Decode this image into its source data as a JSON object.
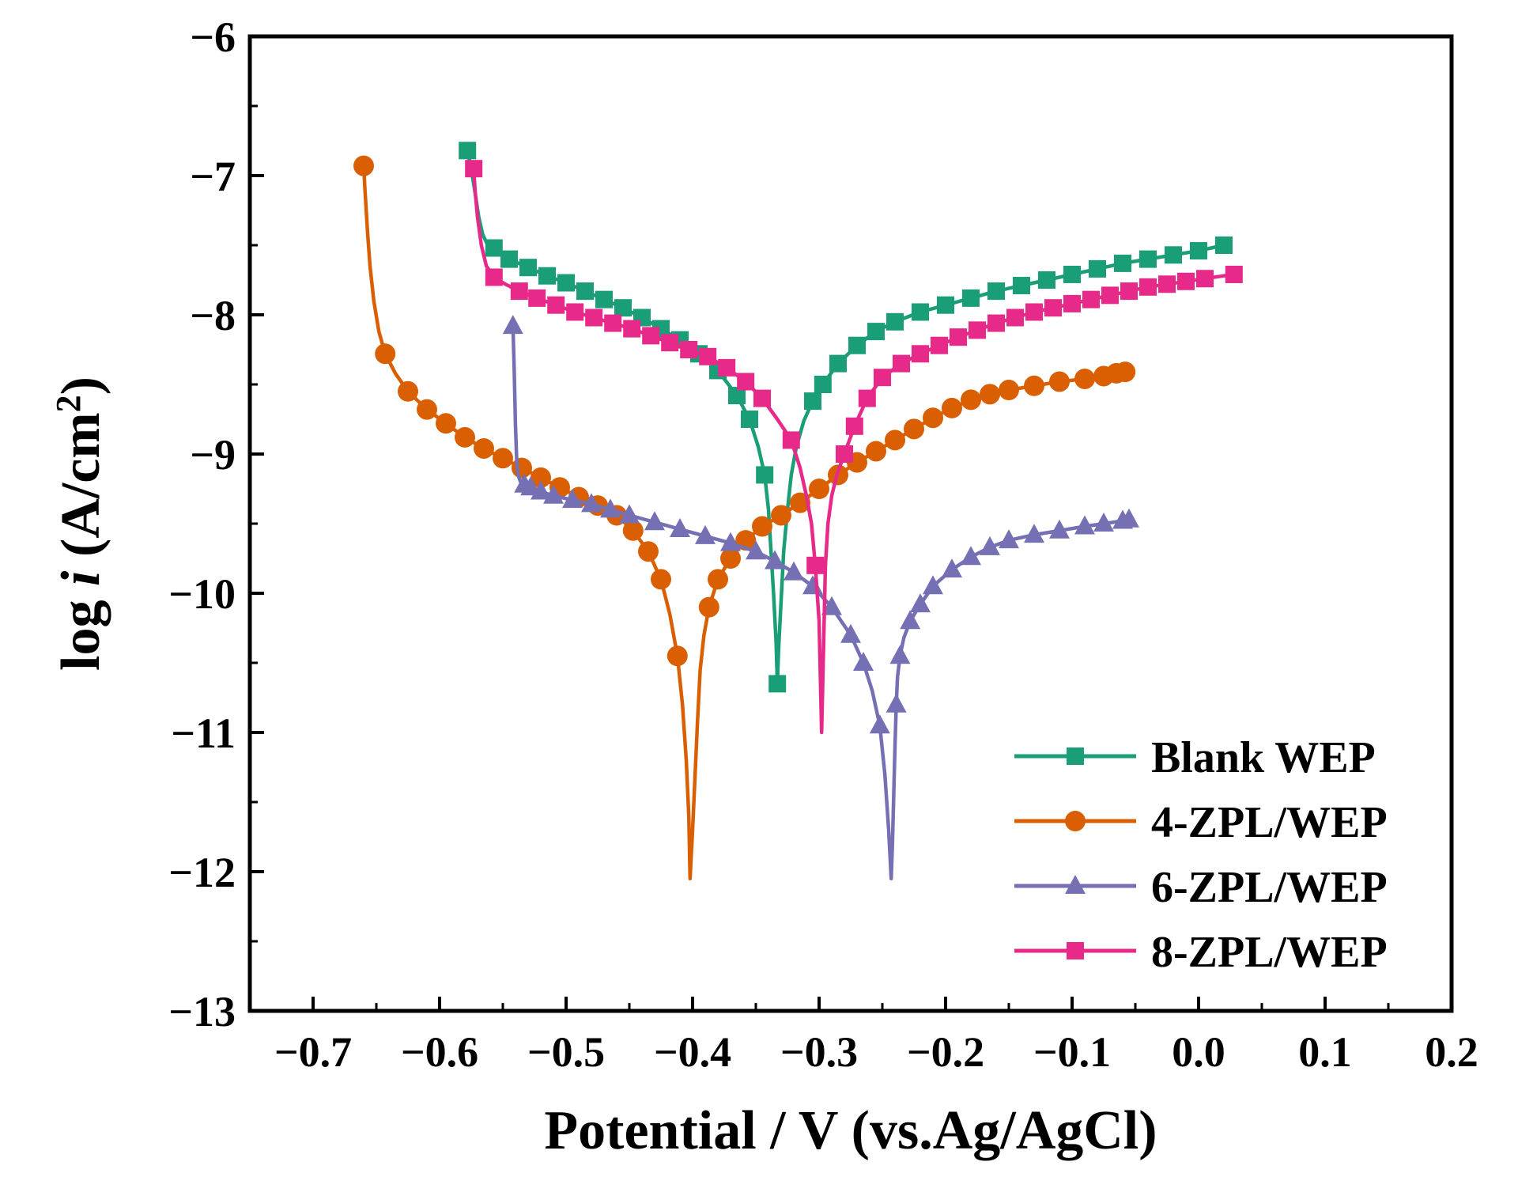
{
  "chart_data": {
    "type": "line",
    "title": "",
    "xlabel": "Potential / V (vs.Ag/AgCl)",
    "ylabel_prefix": "log ",
    "ylabel_var": "i",
    "ylabel_unit": " (A/cm",
    "ylabel_sup": "2",
    "ylabel_close": ")",
    "xlim": [
      -0.75,
      0.2
    ],
    "ylim": [
      -13,
      -6
    ],
    "xticks": [
      -0.7,
      -0.6,
      -0.5,
      -0.4,
      -0.3,
      -0.2,
      -0.1,
      0.0,
      0.1,
      0.2
    ],
    "xtick_labels": [
      "−0.7",
      "−0.6",
      "−0.5",
      "−0.4",
      "−0.3",
      "−0.2",
      "−0.1",
      "0.0",
      "0.1",
      "0.2"
    ],
    "yticks": [
      -6,
      -7,
      -8,
      -9,
      -10,
      -11,
      -12,
      -13
    ],
    "ytick_labels": [
      "−6",
      "−7",
      "−8",
      "−9",
      "−10",
      "−11",
      "−12",
      "−13"
    ],
    "grid": false,
    "legend_position": "bottom-right",
    "series": [
      {
        "name": "Blank WEP",
        "color": "#1a9e77",
        "marker": "square",
        "x": [
          -0.578,
          -0.575,
          -0.572,
          -0.569,
          -0.566,
          -0.563,
          -0.557,
          -0.545,
          -0.53,
          -0.515,
          -0.5,
          -0.485,
          -0.47,
          -0.455,
          -0.44,
          -0.425,
          -0.41,
          -0.395,
          -0.38,
          -0.365,
          -0.355,
          -0.348,
          -0.343,
          -0.34,
          -0.338,
          -0.336,
          -0.334,
          -0.333,
          -0.332,
          -0.33,
          -0.328,
          -0.325,
          -0.322,
          -0.318,
          -0.312,
          -0.305,
          -0.297,
          -0.285,
          -0.27,
          -0.255,
          -0.24,
          -0.22,
          -0.2,
          -0.18,
          -0.16,
          -0.14,
          -0.12,
          -0.1,
          -0.08,
          -0.06,
          -0.04,
          -0.02,
          0.0,
          0.01,
          0.02
        ],
        "y": [
          -6.82,
          -6.95,
          -7.12,
          -7.3,
          -7.42,
          -7.48,
          -7.52,
          -7.6,
          -7.66,
          -7.72,
          -7.77,
          -7.83,
          -7.89,
          -7.95,
          -8.02,
          -8.1,
          -8.18,
          -8.28,
          -8.4,
          -8.58,
          -8.75,
          -8.95,
          -9.15,
          -9.4,
          -9.7,
          -10.0,
          -10.35,
          -10.65,
          -10.4,
          -10.05,
          -9.7,
          -9.4,
          -9.15,
          -8.95,
          -8.76,
          -8.62,
          -8.5,
          -8.35,
          -8.22,
          -8.12,
          -8.05,
          -7.98,
          -7.93,
          -7.88,
          -7.83,
          -7.79,
          -7.75,
          -7.71,
          -7.67,
          -7.63,
          -7.6,
          -7.57,
          -7.54,
          -7.52,
          -7.5
        ],
        "marker_idx": [
          0,
          6,
          7,
          8,
          9,
          10,
          11,
          12,
          13,
          14,
          15,
          16,
          17,
          18,
          19,
          20,
          22,
          27,
          35,
          36,
          37,
          38,
          39,
          40,
          41,
          42,
          43,
          44,
          45,
          46,
          47,
          48,
          49,
          50,
          51,
          52,
          54
        ]
      },
      {
        "name": "4-ZPL/WEP",
        "color": "#d95f02",
        "marker": "circle",
        "x": [
          -0.66,
          -0.659,
          -0.657,
          -0.655,
          -0.652,
          -0.648,
          -0.643,
          -0.635,
          -0.625,
          -0.61,
          -0.595,
          -0.58,
          -0.565,
          -0.55,
          -0.535,
          -0.52,
          -0.505,
          -0.49,
          -0.475,
          -0.46,
          -0.447,
          -0.435,
          -0.425,
          -0.418,
          -0.412,
          -0.408,
          -0.405,
          -0.403,
          -0.402,
          -0.4,
          -0.398,
          -0.396,
          -0.394,
          -0.391,
          -0.387,
          -0.38,
          -0.37,
          -0.358,
          -0.345,
          -0.33,
          -0.315,
          -0.3,
          -0.285,
          -0.27,
          -0.255,
          -0.24,
          -0.225,
          -0.21,
          -0.195,
          -0.18,
          -0.165,
          -0.15,
          -0.13,
          -0.11,
          -0.09,
          -0.075,
          -0.065,
          -0.058
        ],
        "y": [
          -6.93,
          -7.1,
          -7.4,
          -7.65,
          -7.9,
          -8.12,
          -8.28,
          -8.42,
          -8.55,
          -8.68,
          -8.78,
          -8.88,
          -8.96,
          -9.03,
          -9.1,
          -9.17,
          -9.24,
          -9.31,
          -9.37,
          -9.44,
          -9.55,
          -9.7,
          -9.9,
          -10.15,
          -10.45,
          -10.8,
          -11.2,
          -11.6,
          -12.05,
          -11.7,
          -11.3,
          -10.9,
          -10.55,
          -10.3,
          -10.1,
          -9.9,
          -9.75,
          -9.62,
          -9.52,
          -9.44,
          -9.35,
          -9.25,
          -9.15,
          -9.06,
          -8.98,
          -8.9,
          -8.82,
          -8.74,
          -8.67,
          -8.61,
          -8.57,
          -8.54,
          -8.51,
          -8.48,
          -8.46,
          -8.44,
          -8.42,
          -8.41
        ],
        "marker_idx": [
          0,
          6,
          8,
          9,
          10,
          11,
          12,
          13,
          14,
          15,
          16,
          17,
          18,
          19,
          20,
          21,
          22,
          24,
          34,
          35,
          36,
          37,
          38,
          39,
          40,
          41,
          42,
          43,
          44,
          45,
          46,
          47,
          48,
          49,
          50,
          51,
          52,
          53,
          54,
          55,
          56,
          57
        ]
      },
      {
        "name": "6-ZPL/WEP",
        "color": "#7570b3",
        "marker": "triangle",
        "x": [
          -0.542,
          -0.541,
          -0.54,
          -0.539,
          -0.538,
          -0.536,
          -0.533,
          -0.528,
          -0.52,
          -0.51,
          -0.495,
          -0.48,
          -0.465,
          -0.45,
          -0.43,
          -0.41,
          -0.39,
          -0.37,
          -0.35,
          -0.335,
          -0.32,
          -0.305,
          -0.29,
          -0.275,
          -0.265,
          -0.258,
          -0.252,
          -0.248,
          -0.245,
          -0.243,
          -0.242,
          -0.241,
          -0.24,
          -0.239,
          -0.238,
          -0.236,
          -0.233,
          -0.228,
          -0.22,
          -0.21,
          -0.195,
          -0.18,
          -0.165,
          -0.15,
          -0.13,
          -0.11,
          -0.09,
          -0.075,
          -0.06,
          -0.055
        ],
        "y": [
          -8.08,
          -8.4,
          -8.8,
          -9.05,
          -9.15,
          -9.2,
          -9.22,
          -9.24,
          -9.27,
          -9.3,
          -9.33,
          -9.36,
          -9.4,
          -9.44,
          -9.49,
          -9.54,
          -9.59,
          -9.64,
          -9.7,
          -9.77,
          -9.85,
          -9.95,
          -10.1,
          -10.3,
          -10.5,
          -10.7,
          -10.95,
          -11.3,
          -11.7,
          -12.05,
          -11.8,
          -11.45,
          -11.1,
          -10.8,
          -10.6,
          -10.45,
          -10.32,
          -10.2,
          -10.08,
          -9.95,
          -9.83,
          -9.74,
          -9.67,
          -9.62,
          -9.58,
          -9.55,
          -9.52,
          -9.5,
          -9.48,
          -9.47
        ],
        "marker_idx": [
          0,
          6,
          7,
          8,
          9,
          10,
          11,
          12,
          13,
          14,
          15,
          16,
          17,
          18,
          19,
          20,
          21,
          22,
          23,
          24,
          26,
          33,
          35,
          37,
          38,
          39,
          40,
          41,
          42,
          43,
          44,
          45,
          46,
          47,
          48,
          49
        ]
      },
      {
        "name": "8-ZPL/WEP",
        "color": "#e7298a",
        "marker": "square",
        "x": [
          -0.573,
          -0.572,
          -0.57,
          -0.567,
          -0.563,
          -0.557,
          -0.548,
          -0.537,
          -0.523,
          -0.508,
          -0.493,
          -0.478,
          -0.463,
          -0.448,
          -0.433,
          -0.418,
          -0.403,
          -0.388,
          -0.373,
          -0.358,
          -0.345,
          -0.333,
          -0.322,
          -0.315,
          -0.31,
          -0.306,
          -0.303,
          -0.3,
          -0.299,
          -0.298,
          -0.297,
          -0.296,
          -0.295,
          -0.293,
          -0.29,
          -0.286,
          -0.28,
          -0.272,
          -0.262,
          -0.25,
          -0.235,
          -0.22,
          -0.205,
          -0.19,
          -0.175,
          -0.16,
          -0.145,
          -0.13,
          -0.115,
          -0.1,
          -0.085,
          -0.07,
          -0.055,
          -0.04,
          -0.025,
          -0.01,
          0.005,
          0.02,
          0.028
        ],
        "y": [
          -6.95,
          -7.1,
          -7.3,
          -7.5,
          -7.65,
          -7.73,
          -7.78,
          -7.83,
          -7.88,
          -7.93,
          -7.98,
          -8.02,
          -8.06,
          -8.1,
          -8.15,
          -8.2,
          -8.25,
          -8.3,
          -8.38,
          -8.48,
          -8.6,
          -8.75,
          -8.9,
          -9.1,
          -9.3,
          -9.5,
          -9.8,
          -10.2,
          -10.6,
          -11.0,
          -10.6,
          -10.2,
          -9.8,
          -9.5,
          -9.3,
          -9.15,
          -9.0,
          -8.8,
          -8.6,
          -8.45,
          -8.35,
          -8.28,
          -8.22,
          -8.16,
          -8.11,
          -8.06,
          -8.02,
          -7.98,
          -7.95,
          -7.92,
          -7.89,
          -7.86,
          -7.83,
          -7.8,
          -7.78,
          -7.76,
          -7.74,
          -7.72,
          -7.71
        ],
        "marker_idx": [
          0,
          5,
          7,
          8,
          9,
          10,
          11,
          12,
          13,
          14,
          15,
          16,
          17,
          18,
          19,
          20,
          22,
          26,
          36,
          37,
          38,
          39,
          40,
          41,
          42,
          43,
          44,
          45,
          46,
          47,
          48,
          49,
          50,
          51,
          52,
          53,
          54,
          55,
          56,
          58
        ]
      }
    ]
  }
}
